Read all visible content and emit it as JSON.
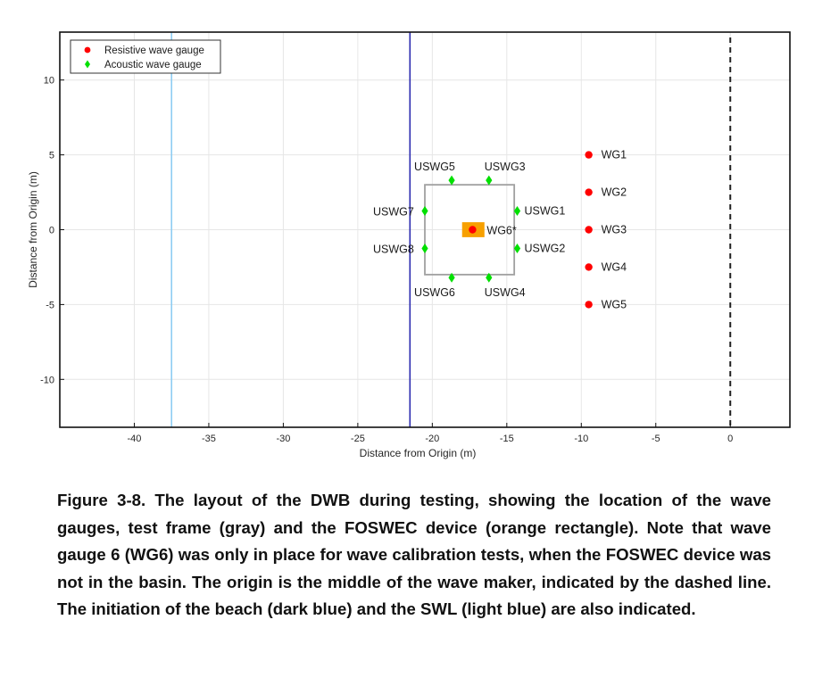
{
  "chart_data": {
    "type": "scatter",
    "title": "",
    "xlabel": "Distance from Origin (m)",
    "ylabel": "Distance from Origin (m)",
    "xlim": [
      -45,
      4
    ],
    "ylim": [
      -13.2,
      13.2
    ],
    "xticks": [
      -40,
      -35,
      -30,
      -25,
      -20,
      -15,
      -10,
      -5,
      0
    ],
    "yticks": [
      10,
      5,
      0,
      -5,
      -10
    ],
    "grid": true,
    "legend_position": "top-left",
    "series": [
      {
        "name": "Resistive wave gauge",
        "marker": "circle",
        "color": "#ff0000",
        "points": [
          {
            "x": -9.5,
            "y": 5,
            "label": "WG1"
          },
          {
            "x": -9.5,
            "y": 2.5,
            "label": "WG2"
          },
          {
            "x": -9.5,
            "y": 0,
            "label": "WG3"
          },
          {
            "x": -9.5,
            "y": -2.5,
            "label": "WG4"
          },
          {
            "x": -9.5,
            "y": -5,
            "label": "WG5"
          },
          {
            "x": -17.3,
            "y": 0,
            "label": "WG6*"
          }
        ]
      },
      {
        "name": "Acoustic wave gauge",
        "marker": "diamond",
        "color": "#00e000",
        "points": [
          {
            "x": -14.3,
            "y": 1.25,
            "label": "USWG1"
          },
          {
            "x": -14.3,
            "y": -1.25,
            "label": "USWG2"
          },
          {
            "x": -16.2,
            "y": 3.3,
            "label": "USWG3"
          },
          {
            "x": -16.2,
            "y": -3.2,
            "label": "USWG4"
          },
          {
            "x": -18.7,
            "y": 3.3,
            "label": "USWG5"
          },
          {
            "x": -18.7,
            "y": -3.2,
            "label": "USWG6"
          },
          {
            "x": -20.5,
            "y": 1.25,
            "label": "USWG7"
          },
          {
            "x": -20.5,
            "y": -1.25,
            "label": "USWG8"
          }
        ]
      }
    ],
    "shapes": {
      "test_frame": {
        "x0": -20.5,
        "x1": -14.5,
        "y0": -3.0,
        "y1": 3.0,
        "color": "#a0a0a0"
      },
      "foswec_device": {
        "x0": -18.0,
        "x1": -16.5,
        "y0": -0.5,
        "y1": 0.5,
        "color": "#f7a000"
      },
      "beach_line": {
        "x": -21.5,
        "color": "#2b2bb0"
      },
      "swl_line": {
        "x": -37.5,
        "color": "#8ecdf2"
      },
      "wavemaker_line": {
        "x": 0,
        "color": "#222222"
      }
    }
  },
  "caption": "Figure 3-8. The layout of the DWB during testing, showing the location of the wave gauges, test frame (gray) and the FOSWEC device (orange rectangle).  Note that wave gauge 6 (WG6) was only in place for wave calibration tests, when the FOSWEC device was not in the basin.  The origin is the middle of the wave maker, indicated by the dashed line.  The initiation of the beach (dark blue) and the SWL (light blue) are also indicated."
}
